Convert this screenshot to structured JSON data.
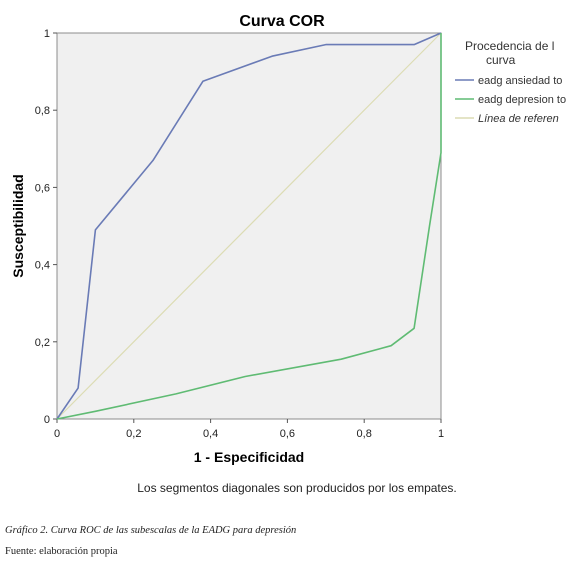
{
  "chart_data": {
    "type": "line",
    "title": "Curva COR",
    "xlabel": "1 - Especificidad",
    "ylabel": "Susceptibilidad",
    "xlim": [
      0,
      1
    ],
    "ylim": [
      0,
      1
    ],
    "x_ticks": [
      "0",
      "0,2",
      "0,4",
      "0,6",
      "0,8",
      "1"
    ],
    "y_ticks": [
      "0",
      "0,2",
      "0,4",
      "0,6",
      "0,8",
      "1"
    ],
    "grid": false,
    "legend_position": "right",
    "legend_title": "Procedencia de l curva",
    "series": [
      {
        "name": "eadg ansiedad to",
        "color": "#6a7bb6",
        "x": [
          0,
          0.055,
          0.1,
          0.25,
          0.38,
          0.56,
          0.7,
          0.93,
          1.0
        ],
        "y": [
          0,
          0.08,
          0.49,
          0.67,
          0.875,
          0.94,
          0.97,
          0.97,
          1.0
        ]
      },
      {
        "name": "eadg depresion to",
        "color": "#5fbb73",
        "x": [
          0,
          0.1,
          0.31,
          0.49,
          0.74,
          0.87,
          0.93,
          0.97,
          1.0,
          1.0
        ],
        "y": [
          0,
          0.02,
          0.065,
          0.11,
          0.155,
          0.19,
          0.235,
          0.5,
          0.69,
          1.0
        ]
      },
      {
        "name": "Línea de referen",
        "color": "#dcdcb4",
        "x": [
          0,
          1
        ],
        "y": [
          0,
          1
        ]
      }
    ],
    "footnote": "Los segmentos diagonales son producidos por los empates."
  },
  "caption": "Gráfico 2. Curva ROC de las subescalas de la EADG para depresión",
  "source": "Fuente: elaboración propia"
}
